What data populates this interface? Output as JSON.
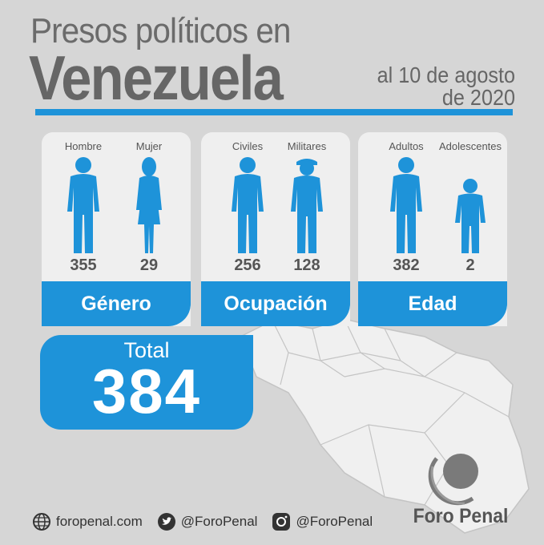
{
  "title": {
    "line1": "Presos políticos en",
    "line2": "Venezuela",
    "date_line1": "al 10 de agosto",
    "date_line2": "de 2020"
  },
  "cards": [
    {
      "category": "Género",
      "items": [
        {
          "label": "Hombre",
          "value": "355",
          "figure": "man-icon"
        },
        {
          "label": "Mujer",
          "value": "29",
          "figure": "woman-icon"
        }
      ]
    },
    {
      "category": "Ocupación",
      "items": [
        {
          "label": "Civiles",
          "value": "256",
          "figure": "civilian-icon"
        },
        {
          "label": "Militares",
          "value": "128",
          "figure": "soldier-icon"
        }
      ]
    },
    {
      "category": "Edad",
      "items": [
        {
          "label": "Adultos",
          "value": "382",
          "figure": "adult-icon"
        },
        {
          "label": "Adolescentes",
          "value": "2",
          "figure": "adolescent-icon"
        }
      ]
    }
  ],
  "total": {
    "label": "Total",
    "value": "384"
  },
  "footer": {
    "website": "foropenal.com",
    "twitter": "@ForoPenal",
    "instagram": "@ForoPenal"
  },
  "brand": {
    "name": "Foro Penal"
  },
  "colors": {
    "accent": "#1e93d9",
    "background": "#d6d6d6",
    "text": "#666666"
  }
}
